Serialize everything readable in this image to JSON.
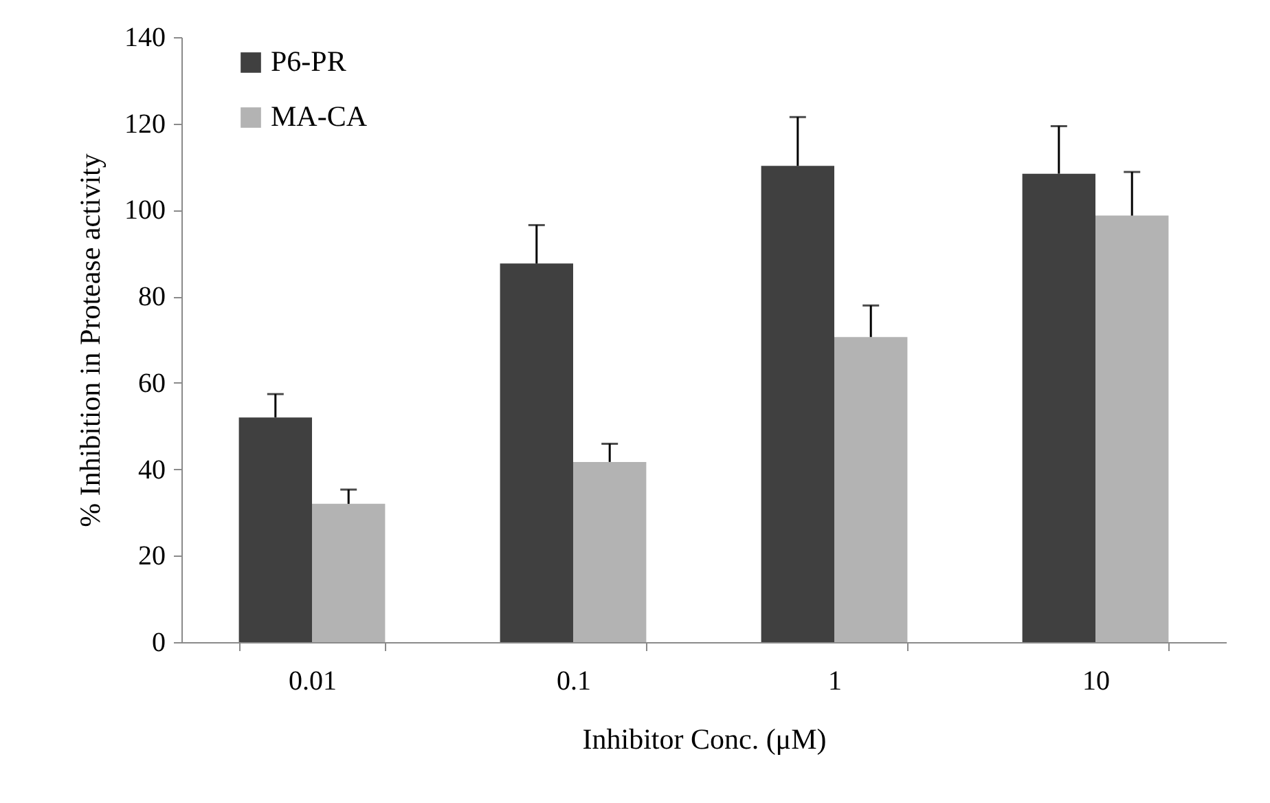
{
  "chart_data": {
    "type": "bar",
    "xlabel": "Inhibitor Conc. (μM)",
    "ylabel": "% Inhibition in Protease activity",
    "categories": [
      "0.01",
      "0.1",
      "1",
      "10"
    ],
    "series": [
      {
        "name": "P6-PR",
        "color": "#404040",
        "values": [
          52,
          87.6,
          110.2,
          108.4
        ],
        "errors": [
          [
            52,
            57.4
          ],
          [
            87.6,
            96.5
          ],
          [
            110.2,
            121.5
          ],
          [
            108.4,
            119.4
          ]
        ]
      },
      {
        "name": "MA-CA",
        "color": "#b3b3b3",
        "values": [
          32,
          41.7,
          70.6,
          98.7
        ],
        "errors": [
          [
            32,
            35.3
          ],
          [
            41.7,
            45.9
          ],
          [
            70.6,
            77.9
          ],
          [
            98.7,
            108.8
          ]
        ]
      }
    ],
    "ylim": [
      0,
      140
    ],
    "yticks": [
      0,
      20,
      40,
      60,
      80,
      100,
      120,
      140
    ],
    "grid": false,
    "legend": "top left"
  }
}
